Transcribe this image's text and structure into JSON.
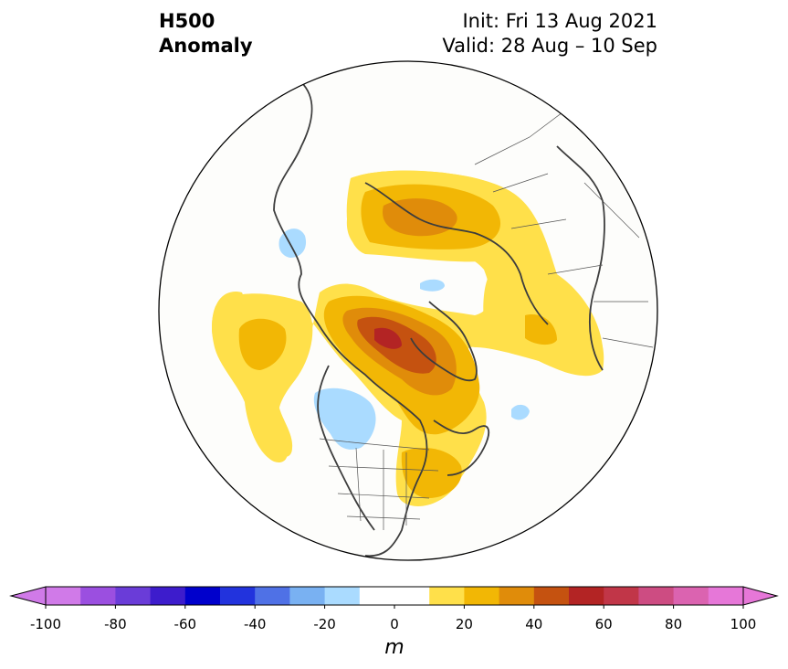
{
  "header": {
    "title_line1": "H500",
    "title_line2": "Anomaly",
    "init": "Init: Fri 13 Aug 2021",
    "valid": "Valid: 28 Aug – 10 Sep"
  },
  "colorbar": {
    "unit": "m",
    "bounds": [
      -100,
      100
    ],
    "step": 10,
    "tick_labels": [
      "-100",
      "-80",
      "-60",
      "-40",
      "-20",
      "0",
      "20",
      "40",
      "60",
      "80",
      "100"
    ],
    "tick_values": [
      -100,
      -80,
      -60,
      -40,
      -20,
      0,
      20,
      40,
      60,
      80,
      100
    ],
    "colors": [
      "#d07ae8",
      "#9b4fe0",
      "#6a3cd8",
      "#3d1ccc",
      "#0000cc",
      "#2233dd",
      "#4f71e6",
      "#79b1f2",
      "#aadbff",
      "#ffffff",
      "#ffffff",
      "#ffe04a",
      "#f2b705",
      "#e08c0a",
      "#c55210",
      "#b32424",
      "#c13648",
      "#cd4c82",
      "#db63b0",
      "#e677d8"
    ],
    "extend_low_color": "#d07ae8",
    "extend_high_color": "#e677d8"
  },
  "map": {
    "projection": "north-polar-stereographic",
    "features": [
      "coastlines",
      "country-borders",
      "us-state-borders"
    ]
  }
}
